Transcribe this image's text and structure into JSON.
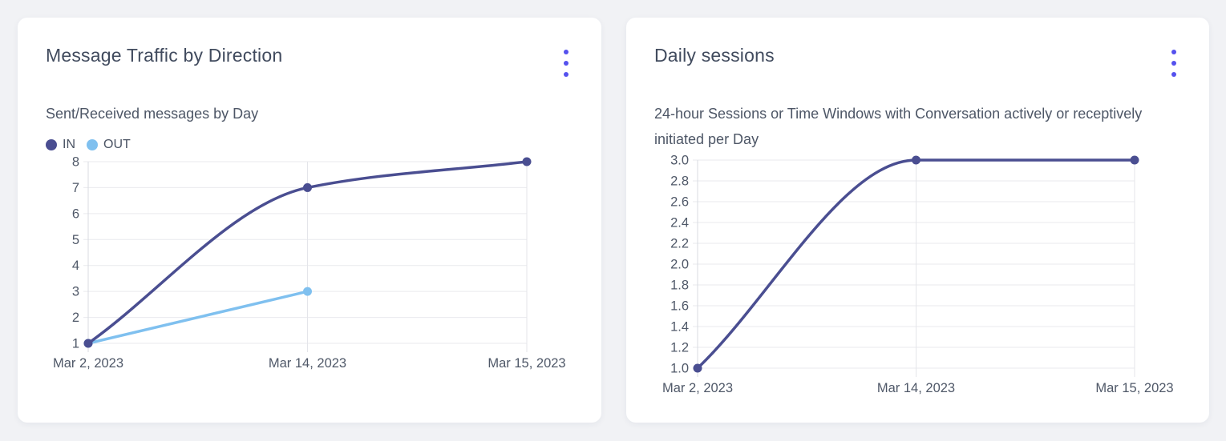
{
  "colors": {
    "menu_accent": "#5551ee",
    "card_background": "#ffffff",
    "page_background": "#f1f2f5"
  },
  "chart_data": [
    {
      "type": "line",
      "title": "Message Traffic by Direction",
      "subtitle": "Sent/Received messages by Day",
      "categories": [
        "Mar 2, 2023",
        "Mar 14, 2023",
        "Mar 15, 2023"
      ],
      "series": [
        {
          "name": "IN",
          "color": "#4a4e91",
          "values": [
            1,
            7,
            8
          ]
        },
        {
          "name": "OUT",
          "color": "#7fc0ef",
          "values": [
            1,
            3,
            null
          ]
        }
      ],
      "ylim": [
        1,
        8
      ],
      "yticks": [
        1,
        2,
        3,
        4,
        5,
        6,
        7,
        8
      ],
      "ytick_labels": [
        "1",
        "2",
        "3",
        "4",
        "5",
        "6",
        "7",
        "8"
      ],
      "xlabel": "",
      "ylabel": "",
      "grid": true,
      "legend_position": "top-left",
      "curve": "monotone"
    },
    {
      "type": "line",
      "title": "Daily sessions",
      "subtitle": "24-hour Sessions or Time Windows with Conversation actively or receptively initiated per Day",
      "categories": [
        "Mar 2, 2023",
        "Mar 14, 2023",
        "Mar 15, 2023"
      ],
      "series": [
        {
          "color": "#4a4e91",
          "values": [
            1,
            3,
            3
          ]
        }
      ],
      "ylim": [
        1,
        3
      ],
      "yticks": [
        1,
        1.2,
        1.4,
        1.6,
        1.8,
        2,
        2.2,
        2.4,
        2.6,
        2.8,
        3
      ],
      "ytick_labels": [
        "1.0",
        "1.2",
        "1.4",
        "1.6",
        "1.8",
        "2.0",
        "2.2",
        "2.4",
        "2.6",
        "2.8",
        "3.0"
      ],
      "xlabel": "",
      "ylabel": "",
      "grid": true,
      "legend_position": "none",
      "curve": "monotone"
    }
  ]
}
